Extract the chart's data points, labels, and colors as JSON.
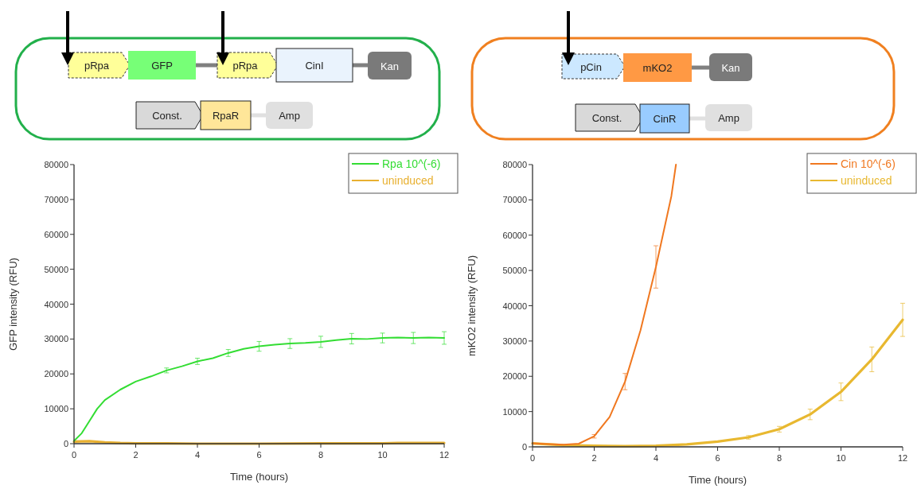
{
  "chart_data": [
    {
      "type": "line",
      "xlabel": "Time (hours)",
      "ylabel": "GFP intensity (RFU)",
      "xlim": [
        0,
        12
      ],
      "xticks": [
        0,
        2,
        4,
        6,
        8,
        10,
        12
      ],
      "ylim": [
        0,
        80000
      ],
      "yticks": [
        0,
        10000,
        20000,
        30000,
        40000,
        50000,
        60000,
        70000,
        80000
      ],
      "legend": "top right",
      "grid": false,
      "marker": "none",
      "line_style": "solid",
      "annotations": [
        "pRpa",
        "GFP",
        "pRpa",
        "CinI",
        "Kan",
        "Const.",
        "RpaR",
        "Amp"
      ],
      "series": [
        {
          "name": "Rpa 10^(-6)",
          "color": "#33dd33",
          "x": [
            0,
            0.25,
            0.5,
            0.75,
            1,
            1.5,
            2,
            2.5,
            3,
            3.5,
            4,
            4.5,
            5,
            5.5,
            6,
            6.5,
            7,
            7.5,
            8,
            8.5,
            9,
            9.5,
            10,
            10.5,
            11,
            11.5,
            12
          ],
          "values": [
            800,
            3000,
            6500,
            10000,
            12500,
            15500,
            17800,
            19300,
            21000,
            22200,
            23600,
            24500,
            26000,
            27200,
            27900,
            28400,
            28700,
            28900,
            29200,
            29700,
            30100,
            30000,
            30300,
            30400,
            30300,
            30400,
            30300
          ],
          "errors": [
            null,
            null,
            null,
            null,
            null,
            null,
            null,
            null,
            700,
            null,
            900,
            null,
            1000,
            null,
            1400,
            null,
            1400,
            null,
            1600,
            null,
            1500,
            null,
            1400,
            null,
            1600,
            null,
            1800
          ]
        },
        {
          "name": "uninduced",
          "color": "#e8b030",
          "x": [
            0,
            0.5,
            1,
            1.5,
            2,
            3,
            4,
            6,
            8,
            10,
            10.5,
            12
          ],
          "values": [
            600,
            700,
            400,
            200,
            100,
            100,
            0,
            0,
            100,
            100,
            200,
            200
          ]
        }
      ]
    },
    {
      "type": "line",
      "xlabel": "Time (hours)",
      "ylabel": "mKO2 intensity (RFU)",
      "xlim": [
        0,
        12
      ],
      "xticks": [
        0,
        2,
        4,
        6,
        8,
        10,
        12
      ],
      "ylim": [
        0,
        80000
      ],
      "yticks": [
        0,
        10000,
        20000,
        30000,
        40000,
        50000,
        60000,
        70000,
        80000
      ],
      "legend": "top right",
      "grid": false,
      "marker": "none",
      "line_style": "solid",
      "annotations": [
        "pCin",
        "mKO2",
        "Kan",
        "Const.",
        "CinR",
        "Amp"
      ],
      "series": [
        {
          "name": "Cin 10^(-6)",
          "color": "#f07820",
          "x": [
            0,
            0.5,
            1,
            1.5,
            2,
            2.5,
            3,
            3.5,
            4,
            4.5,
            4.65
          ],
          "values": [
            1000,
            800,
            600,
            900,
            3000,
            8500,
            18500,
            33000,
            51000,
            71000,
            80000
          ],
          "errors": [
            null,
            null,
            null,
            null,
            500,
            null,
            2300,
            null,
            6000,
            null,
            null
          ]
        },
        {
          "name": "uninduced",
          "color": "#e8b830",
          "x": [
            0,
            1,
            2,
            3,
            4,
            5,
            6,
            7,
            8,
            9,
            10,
            11,
            12
          ],
          "values": [
            1000,
            500,
            300,
            200,
            300,
            700,
            1500,
            2700,
            5000,
            9200,
            15600,
            24800,
            36000
          ],
          "errors": [
            null,
            null,
            null,
            null,
            null,
            null,
            null,
            500,
            800,
            1500,
            2500,
            3500,
            4700
          ]
        }
      ]
    }
  ]
}
